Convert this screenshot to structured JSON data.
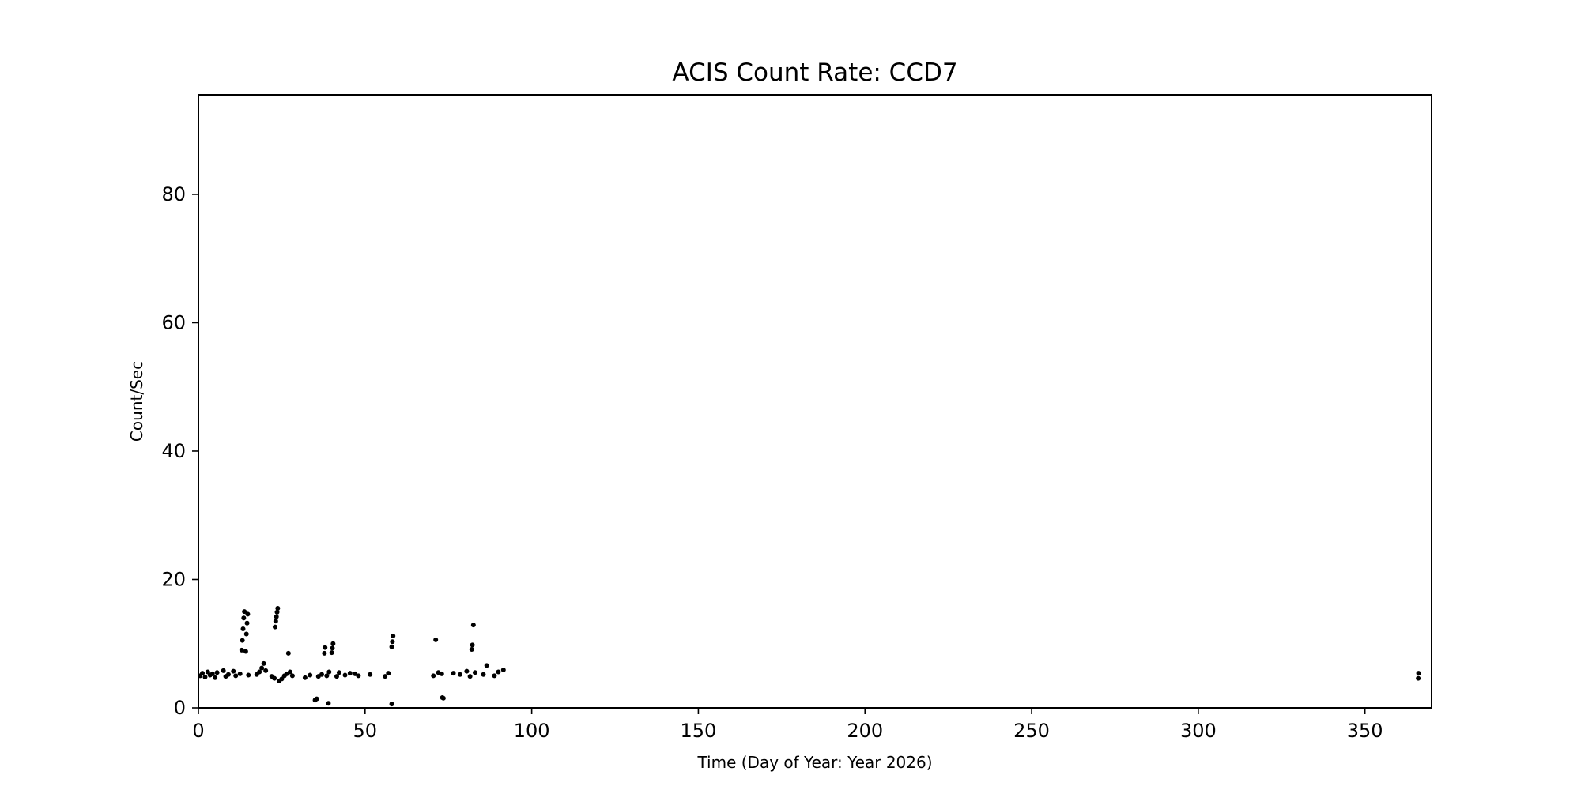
{
  "chart_data": {
    "type": "scatter",
    "title": "ACIS Count Rate: CCD7",
    "xlabel": "Time (Day of Year: Year 2026)",
    "ylabel": "Count/Sec",
    "xlim": [
      0,
      370
    ],
    "ylim": [
      0,
      95.5
    ],
    "xticks": [
      0,
      50,
      100,
      150,
      200,
      250,
      300,
      350
    ],
    "yticks": [
      0,
      20,
      40,
      60,
      80
    ],
    "grid": false,
    "marker_color": "#000000",
    "points": [
      [
        0.5,
        5.0
      ],
      [
        1.2,
        5.4
      ],
      [
        2.0,
        4.8
      ],
      [
        2.8,
        5.6
      ],
      [
        3.5,
        5.1
      ],
      [
        4.2,
        5.3
      ],
      [
        5.0,
        4.7
      ],
      [
        5.6,
        5.5
      ],
      [
        7.5,
        5.8
      ],
      [
        8.2,
        4.9
      ],
      [
        9.0,
        5.2
      ],
      [
        10.5,
        5.7
      ],
      [
        11.2,
        5.0
      ],
      [
        12.5,
        5.3
      ],
      [
        13.0,
        9.0
      ],
      [
        13.2,
        10.5
      ],
      [
        13.4,
        12.3
      ],
      [
        13.6,
        14.0
      ],
      [
        13.8,
        15.0
      ],
      [
        14.2,
        8.8
      ],
      [
        14.4,
        11.5
      ],
      [
        14.6,
        13.2
      ],
      [
        14.8,
        14.6
      ],
      [
        15.0,
        5.1
      ],
      [
        17.5,
        5.2
      ],
      [
        18.3,
        5.6
      ],
      [
        19.0,
        6.2
      ],
      [
        19.6,
        6.9
      ],
      [
        20.2,
        5.8
      ],
      [
        22.0,
        4.9
      ],
      [
        22.8,
        4.6
      ],
      [
        23.0,
        12.6
      ],
      [
        23.2,
        13.5
      ],
      [
        23.4,
        14.2
      ],
      [
        23.6,
        14.9
      ],
      [
        23.8,
        15.5
      ],
      [
        24.2,
        4.2
      ],
      [
        25.0,
        4.5
      ],
      [
        25.8,
        5.0
      ],
      [
        26.5,
        5.3
      ],
      [
        27.0,
        8.5
      ],
      [
        27.5,
        5.6
      ],
      [
        28.2,
        5.0
      ],
      [
        32.0,
        4.7
      ],
      [
        33.5,
        5.1
      ],
      [
        35.0,
        1.2
      ],
      [
        35.5,
        1.4
      ],
      [
        36.0,
        4.9
      ],
      [
        37.0,
        5.2
      ],
      [
        37.8,
        8.5
      ],
      [
        38.0,
        9.4
      ],
      [
        38.5,
        5.0
      ],
      [
        39.2,
        5.6
      ],
      [
        39.0,
        0.7
      ],
      [
        40.0,
        8.6
      ],
      [
        40.2,
        9.3
      ],
      [
        40.4,
        10.0
      ],
      [
        41.5,
        4.9
      ],
      [
        42.2,
        5.5
      ],
      [
        44.0,
        5.1
      ],
      [
        45.5,
        5.4
      ],
      [
        47.0,
        5.3
      ],
      [
        48.0,
        5.0
      ],
      [
        51.5,
        5.2
      ],
      [
        56.0,
        4.9
      ],
      [
        57.0,
        5.4
      ],
      [
        58.0,
        9.5
      ],
      [
        58.2,
        10.3
      ],
      [
        58.4,
        11.2
      ],
      [
        58.0,
        0.6
      ],
      [
        70.5,
        5.0
      ],
      [
        71.2,
        10.6
      ],
      [
        72.0,
        5.5
      ],
      [
        73.0,
        5.3
      ],
      [
        73.2,
        1.6
      ],
      [
        73.5,
        1.5
      ],
      [
        76.5,
        5.4
      ],
      [
        78.5,
        5.2
      ],
      [
        80.5,
        5.7
      ],
      [
        81.5,
        4.9
      ],
      [
        82.0,
        9.1
      ],
      [
        82.2,
        9.8
      ],
      [
        82.5,
        12.9
      ],
      [
        83.0,
        5.5
      ],
      [
        85.5,
        5.2
      ],
      [
        86.5,
        6.6
      ],
      [
        88.8,
        5.0
      ],
      [
        90.0,
        5.6
      ],
      [
        91.5,
        5.9
      ],
      [
        366.0,
        4.6
      ],
      [
        366.1,
        5.4
      ]
    ]
  }
}
